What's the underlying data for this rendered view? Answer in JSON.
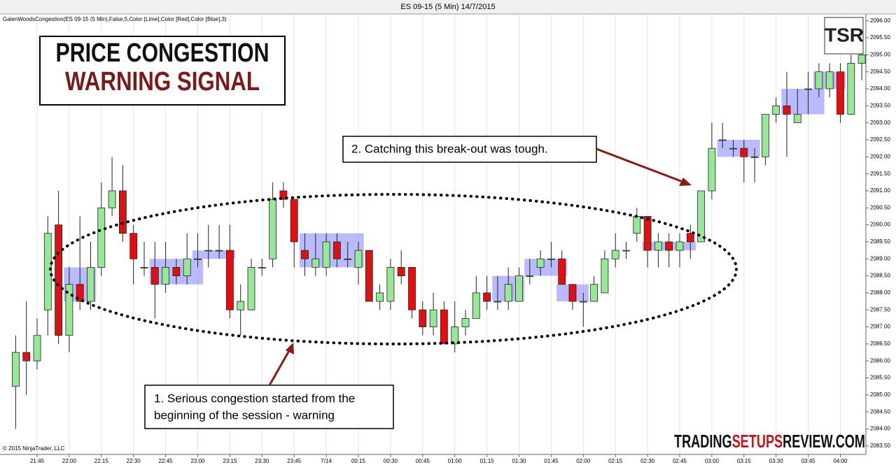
{
  "chart_data": {
    "type": "candlestick",
    "title": "ES 09-15 (5 Min)  14/7/2015",
    "indicator_label": "GalenWoodsCongestion(ES 09-15 (5 Min),False,5,Color [Lime],Color [Red],Color [Blue],3)",
    "copyright": "© 2015 NinjaTrader, LLC",
    "categories": [
      null,
      null,
      "21:45",
      null,
      null,
      "22:00",
      null,
      null,
      "22:15",
      null,
      null,
      "22:30",
      null,
      null,
      "22:45",
      null,
      null,
      "23:00",
      null,
      null,
      "23:15",
      null,
      null,
      "23:30",
      null,
      null,
      "23:45",
      null,
      null,
      "7/14",
      null,
      null,
      "00:15",
      null,
      null,
      "00:30",
      null,
      null,
      "00:45",
      null,
      null,
      "01:00",
      null,
      null,
      "01:15",
      null,
      null,
      "01:30",
      null,
      null,
      "01:45",
      null,
      null,
      "02:00",
      null,
      null,
      "02:15",
      null,
      null,
      "02:30",
      null,
      null,
      "02:45",
      null,
      null,
      "03:00",
      null,
      null,
      "03:15",
      null,
      null,
      "03:30",
      null,
      null,
      "03:45",
      null,
      null,
      "04:00",
      null,
      null
    ],
    "open": [
      2085.25,
      2086.25,
      2086.0,
      2087.5,
      2090.0,
      2086.75,
      2088.25,
      2087.75,
      2088.75,
      2090.5,
      2091.0,
      2089.75,
      2088.75,
      2088.75,
      2088.25,
      2088.75,
      2088.5,
      2089.0,
      2089.25,
      2089.25,
      2089.25,
      2087.5,
      2087.5,
      2088.75,
      2089.0,
      2091.0,
      2090.75,
      2089.25,
      2088.75,
      2088.75,
      2089.5,
      2089.0,
      2088.75,
      2089.25,
      2087.75,
      2087.75,
      2088.75,
      2088.75,
      2087.5,
      2087.0,
      2087.5,
      2086.5,
      2087.0,
      2087.25,
      2088.0,
      2087.75,
      2087.75,
      2087.75,
      2088.5,
      2088.75,
      2089.0,
      2089.0,
      2088.25,
      2087.75,
      2087.75,
      2088.0,
      2089.0,
      2089.25,
      2089.75,
      2090.25,
      2089.25,
      2089.5,
      2089.25,
      2089.75,
      2089.5,
      2091.0,
      2092.5,
      2092.25,
      2092.25,
      2092.0,
      2092.0,
      2093.25,
      2093.5,
      2093.0,
      2094.0,
      2094.0,
      2094.0,
      2094.5,
      2093.25,
      2094.75
    ],
    "high": [
      2086.75,
      2087.75,
      2087.25,
      2090.25,
      2091.0,
      2088.75,
      2090.25,
      2089.5,
      2091.25,
      2092.0,
      2091.75,
      2090.0,
      2089.5,
      2089.5,
      2089.5,
      2089.0,
      2089.75,
      2089.75,
      2090.0,
      2090.0,
      2090.0,
      2088.25,
      2089.0,
      2089.0,
      2091.25,
      2091.25,
      2090.75,
      2089.75,
      2089.75,
      2089.75,
      2089.75,
      2089.5,
      2089.5,
      2089.25,
      2088.25,
      2089.0,
      2089.25,
      2088.75,
      2087.75,
      2088.0,
      2087.75,
      2087.75,
      2087.5,
      2088.5,
      2088.5,
      2088.5,
      2088.75,
      2088.75,
      2089.0,
      2089.25,
      2089.5,
      2089.25,
      2088.25,
      2088.0,
      2088.5,
      2089.25,
      2089.75,
      2089.5,
      2090.5,
      2090.25,
      2089.75,
      2089.75,
      2089.75,
      2090.0,
      2091.0,
      2093.0,
      2093.0,
      2092.5,
      2092.5,
      2092.25,
      2093.25,
      2093.75,
      2094.5,
      2094.0,
      2094.5,
      2094.75,
      2094.75,
      2094.75,
      2095.0,
      2095.25
    ],
    "low": [
      2084.0,
      2085.0,
      2085.75,
      2086.75,
      2086.5,
      2086.25,
      2087.5,
      2087.5,
      2088.5,
      2090.25,
      2089.5,
      2088.25,
      2088.5,
      2087.25,
      2088.0,
      2088.25,
      2088.25,
      2088.75,
      2088.75,
      2089.0,
      2087.25,
      2086.75,
      2087.5,
      2088.5,
      2088.75,
      2090.5,
      2088.75,
      2088.5,
      2088.5,
      2088.5,
      2088.75,
      2088.75,
      2088.25,
      2087.75,
      2087.5,
      2087.5,
      2088.25,
      2087.25,
      2086.75,
      2086.75,
      2086.5,
      2086.25,
      2086.75,
      2087.25,
      2087.5,
      2087.5,
      2087.5,
      2087.75,
      2088.25,
      2088.5,
      2088.75,
      2088.25,
      2087.5,
      2087.0,
      2087.75,
      2088.0,
      2088.75,
      2089.0,
      2089.5,
      2088.75,
      2088.75,
      2088.75,
      2088.75,
      2089.0,
      2089.5,
      2090.75,
      2092.25,
      2092.0,
      2091.25,
      2091.25,
      2091.75,
      2093.0,
      2092.0,
      2093.0,
      2093.25,
      2093.75,
      2093.75,
      2093.0,
      2093.25,
      2094.25
    ],
    "close": [
      2086.25,
      2086.0,
      2086.75,
      2089.75,
      2086.75,
      2088.25,
      2087.75,
      2088.75,
      2090.5,
      2091.0,
      2089.75,
      2089.0,
      2088.75,
      2088.25,
      2088.75,
      2088.5,
      2089.0,
      2089.0,
      2089.25,
      2089.25,
      2087.5,
      2087.75,
      2088.75,
      2088.75,
      2090.75,
      2090.75,
      2089.5,
      2089.0,
      2089.0,
      2089.5,
      2089.0,
      2089.0,
      2089.25,
      2087.75,
      2088.0,
      2088.75,
      2088.5,
      2087.5,
      2087.0,
      2087.5,
      2086.5,
      2087.0,
      2087.25,
      2088.0,
      2087.75,
      2087.75,
      2088.25,
      2088.5,
      2088.5,
      2089.0,
      2089.0,
      2088.25,
      2087.75,
      2087.75,
      2088.25,
      2089.0,
      2089.25,
      2089.25,
      2090.25,
      2089.25,
      2089.5,
      2089.25,
      2089.5,
      2089.5,
      2091.0,
      2092.25,
      2092.5,
      2092.25,
      2092.0,
      2092.0,
      2093.25,
      2093.5,
      2093.25,
      2093.25,
      2094.0,
      2094.5,
      2094.5,
      2093.25,
      2094.75,
      2095.0
    ],
    "up_color": "#98e698",
    "down_color": "#e01010",
    "zone_color": "#8c8cff",
    "congestion_zones": [
      {
        "start": 5,
        "end": 7,
        "low": 2087.75,
        "high": 2088.75
      },
      {
        "start": 13,
        "end": 17,
        "low": 2088.25,
        "high": 2089.0
      },
      {
        "start": 17,
        "end": 20,
        "low": 2089.0,
        "high": 2089.25
      },
      {
        "start": 27,
        "end": 32,
        "low": 2088.75,
        "high": 2089.75
      },
      {
        "start": 45,
        "end": 47,
        "low": 2087.75,
        "high": 2088.5
      },
      {
        "start": 48,
        "end": 51,
        "low": 2088.5,
        "high": 2089.0
      },
      {
        "start": 51,
        "end": 53,
        "low": 2087.75,
        "high": 2088.25
      },
      {
        "start": 59,
        "end": 63,
        "low": 2089.25,
        "high": 2089.5
      },
      {
        "start": 66,
        "end": 69,
        "low": 2092.0,
        "high": 2092.5
      },
      {
        "start": 72,
        "end": 75,
        "low": 2093.25,
        "high": 2094.0
      },
      {
        "start": 75,
        "end": 77,
        "low": 2094.0,
        "high": 2094.5
      }
    ],
    "ylim": [
      2083.25,
      2096.2
    ],
    "yticks": [
      {
        "value": 2083.5,
        "label": "2083.50"
      },
      {
        "value": 2084,
        "label": "2084.00"
      },
      {
        "value": 2084.5,
        "label": "2084.50"
      },
      {
        "value": 2085,
        "label": "2085.00"
      },
      {
        "value": 2085.5,
        "label": "2085.50"
      },
      {
        "value": 2086,
        "label": "2086.00"
      },
      {
        "value": 2086.5,
        "label": "2086.50"
      },
      {
        "value": 2087,
        "label": "2087.00"
      },
      {
        "value": 2087.5,
        "label": "2087.50"
      },
      {
        "value": 2088,
        "label": "2088.00"
      },
      {
        "value": 2088.5,
        "label": "2088.50"
      },
      {
        "value": 2089,
        "label": "2089.00"
      },
      {
        "value": 2089.5,
        "label": "2089.50"
      },
      {
        "value": 2090,
        "label": "2090.00"
      },
      {
        "value": 2090.5,
        "label": "2090.50"
      },
      {
        "value": 2091,
        "label": "2091.00"
      },
      {
        "value": 2091.5,
        "label": "2091.50"
      },
      {
        "value": 2092,
        "label": "2092.00"
      },
      {
        "value": 2092.5,
        "label": "2092.50"
      },
      {
        "value": 2093,
        "label": "2093.00"
      },
      {
        "value": 2093.5,
        "label": "2093.50"
      },
      {
        "value": 2094,
        "label": "2094.00"
      },
      {
        "value": 2094.5,
        "label": "2094.50"
      },
      {
        "value": 2095,
        "label": "2095.00"
      },
      {
        "value": 2095.5,
        "label": "2095.50"
      },
      {
        "value": 2096,
        "label": "2096.00"
      }
    ],
    "grid": "vertical",
    "annotations": {
      "headline": [
        "PRICE CONGESTION",
        "WARNING SIGNAL"
      ],
      "callout_1": [
        "1. Serious congestion started from the",
        "beginning  of the session - warning"
      ],
      "callout_2": "2. Catching this break-out was tough.",
      "logo": "TSR",
      "brand": [
        "TRADING",
        "SETUPS",
        "REVIEW.COM"
      ]
    }
  }
}
